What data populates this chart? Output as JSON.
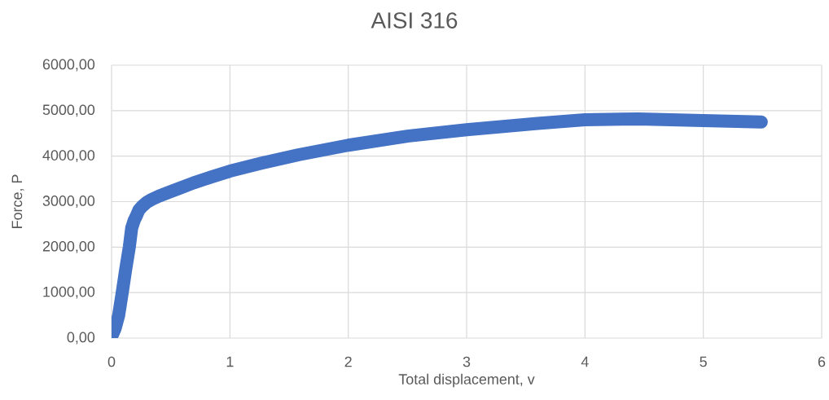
{
  "chart_data": {
    "type": "line",
    "title": "AISI 316",
    "xlabel": "Total displacement, v",
    "ylabel": "Force, P",
    "x": [
      0,
      0.03,
      0.06,
      0.09,
      0.12,
      0.15,
      0.17,
      0.19,
      0.21,
      0.23,
      0.26,
      0.3,
      0.34,
      0.4,
      0.48,
      0.58,
      0.69,
      0.84,
      1.0,
      1.26,
      1.58,
      2.0,
      2.5,
      3.0,
      3.6,
      4.0,
      4.45,
      5.0,
      5.49
    ],
    "values": [
      30,
      210,
      500,
      1000,
      1520,
      2000,
      2420,
      2580,
      2690,
      2810,
      2900,
      2990,
      3050,
      3120,
      3200,
      3300,
      3410,
      3540,
      3670,
      3840,
      4030,
      4240,
      4440,
      4580,
      4720,
      4800,
      4820,
      4780,
      4750
    ],
    "color": "#4472c4",
    "xlim": [
      0,
      6
    ],
    "xticks": [
      0,
      1,
      2,
      3,
      4,
      5,
      6
    ],
    "ylim": [
      0,
      6000
    ],
    "yticks": [
      {
        "value": 0,
        "label": "0,00"
      },
      {
        "value": 1000,
        "label": "1000,00"
      },
      {
        "value": 2000,
        "label": "2000,00"
      },
      {
        "value": 3000,
        "label": "3000,00"
      },
      {
        "value": 4000,
        "label": "4000,00"
      },
      {
        "value": 5000,
        "label": "5000,00"
      },
      {
        "value": 6000,
        "label": "6000,00"
      }
    ],
    "grid": true
  }
}
